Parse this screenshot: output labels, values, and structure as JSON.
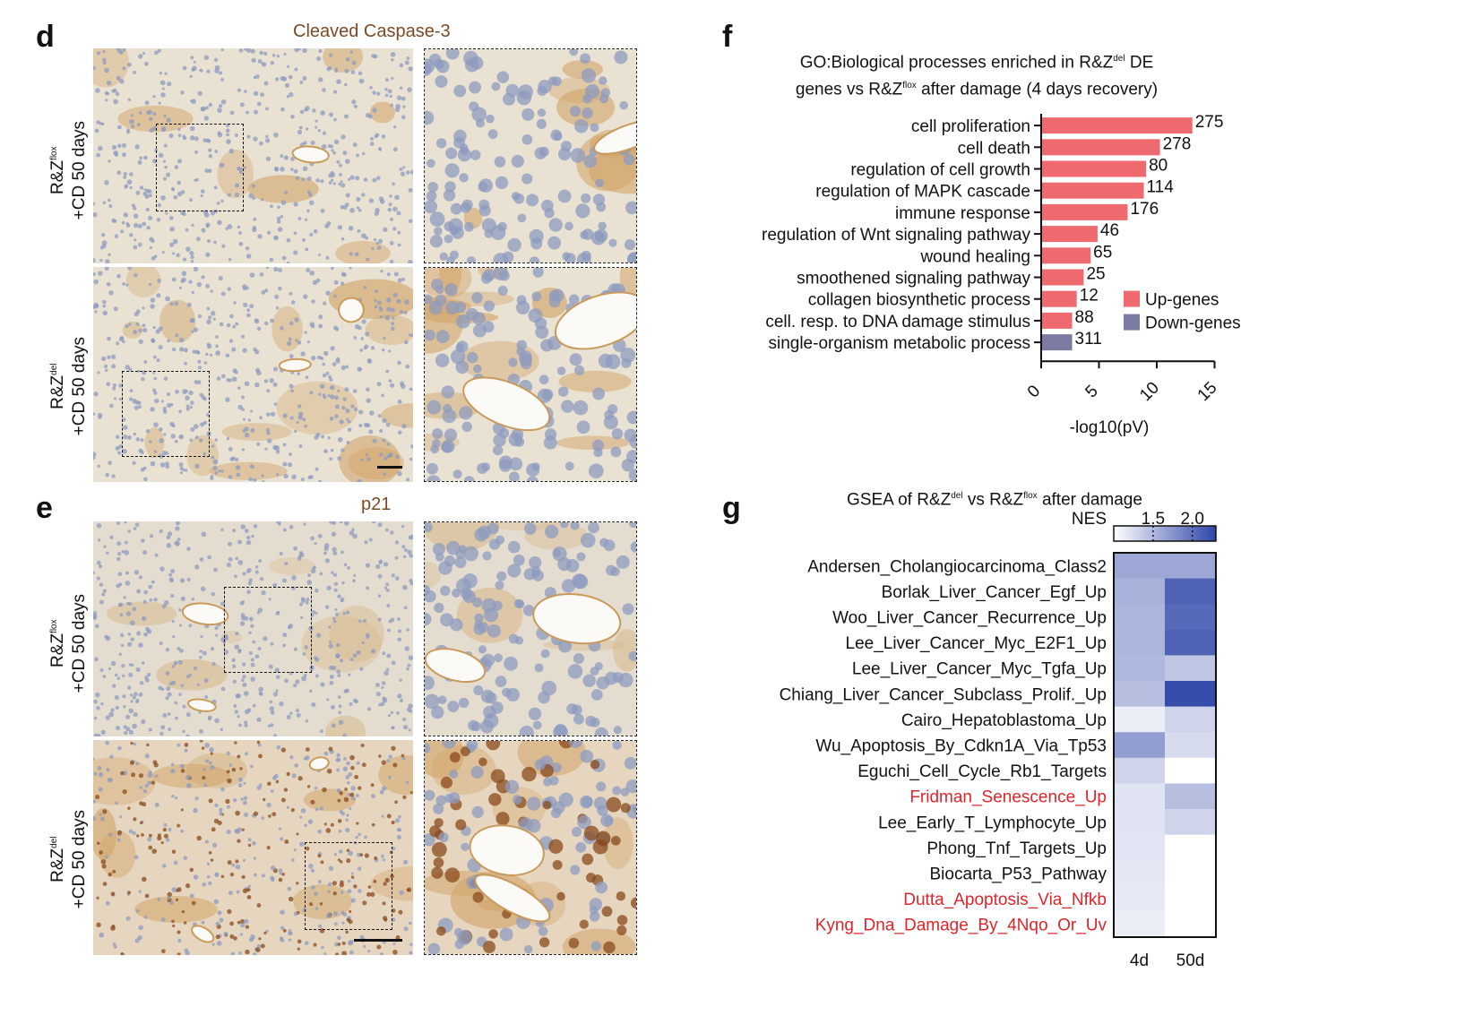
{
  "panel_d": {
    "letter": "d",
    "stain": "Cleaved Caspase-3",
    "rows": [
      {
        "genotype": "R&Z",
        "sup": "flox",
        "condition": "+CD 50 days"
      },
      {
        "genotype": "R&Z",
        "sup": "del",
        "condition": "+CD 50 days"
      }
    ]
  },
  "panel_e": {
    "letter": "e",
    "stain": "p21",
    "rows": [
      {
        "genotype": "R&Z",
        "sup": "flox",
        "condition": "+CD 50 days"
      },
      {
        "genotype": "R&Z",
        "sup": "del",
        "condition": "+CD 50 days"
      }
    ]
  },
  "panel_f": {
    "letter": "f",
    "title_line1_a": "GO:Biological processes enriched in R&Z",
    "title_line1_sup": "del",
    "title_line1_b": " DE",
    "title_line2_a": "genes vs R&Z",
    "title_line2_sup": "flox",
    "title_line2_b": " after damage (4 days recovery)"
  },
  "panel_g": {
    "letter": "g",
    "title_a": "GSEA of R&Z",
    "title_sup1": "del",
    "title_b": " vs R&Z",
    "title_sup2": "flox",
    "title_c": " after damage",
    "nes_label": "NES",
    "nes_ticks": [
      "1.5",
      "2.0"
    ],
    "columns": [
      "4d",
      "50d"
    ]
  },
  "colors": {
    "up": "#ef6a6e",
    "down": "#7b7ba3",
    "heat_low": "#ffffff",
    "heat_high": "#2f46a8",
    "red_text": "#e1242a",
    "stain_title": "#7a4a22"
  },
  "chart_data": [
    {
      "type": "bar",
      "orientation": "horizontal",
      "categories": [
        "cell proliferation",
        "cell death",
        "regulation of cell growth",
        "regulation of MAPK cascade",
        "immune response",
        "regulation of Wnt signaling pathway",
        "wound healing",
        "smoothened signaling pathway",
        "collagen biosynthetic process",
        "cell. resp. to DNA damage stimulus",
        "single-organism metabolic process"
      ],
      "values": [
        13.0,
        10.2,
        9.0,
        8.8,
        7.4,
        4.8,
        4.2,
        3.6,
        3.0,
        2.6,
        2.6
      ],
      "counts": [
        "275",
        "278",
        "80",
        "114",
        "176",
        "46",
        "65",
        "25",
        "12",
        "88",
        "311"
      ],
      "groups": [
        "up",
        "up",
        "up",
        "up",
        "up",
        "up",
        "up",
        "up",
        "up",
        "up",
        "down"
      ],
      "legend": [
        "Up-genes",
        "Down-genes"
      ],
      "legend_position": "lower-right",
      "xlabel": "-log10(pV)",
      "xticks": [
        "0",
        "5",
        "10",
        "15"
      ],
      "xlim": [
        0,
        15
      ]
    },
    {
      "type": "heatmap",
      "columns": [
        "4d",
        "50d"
      ],
      "rows": [
        {
          "name": "Andersen_Cholangiocarcinoma_Class2",
          "values": [
            1.62,
            1.62
          ],
          "highlight": false
        },
        {
          "name": "Borlak_Liver_Cancer_Egf_Up",
          "values": [
            1.55,
            2.1
          ],
          "highlight": false
        },
        {
          "name": "Woo_Liver_Cancer_Recurrence_Up",
          "values": [
            1.52,
            2.05
          ],
          "highlight": false
        },
        {
          "name": "Lee_Liver_Cancer_Myc_E2F1_Up",
          "values": [
            1.52,
            2.1
          ],
          "highlight": false
        },
        {
          "name": "Lee_Liver_Cancer_Myc_Tgfa_Up",
          "values": [
            1.5,
            1.4
          ],
          "highlight": false
        },
        {
          "name": "Chiang_Liver_Cancer_Subclass_Prolif._Up",
          "values": [
            1.45,
            2.25
          ],
          "highlight": false
        },
        {
          "name": "Cairo_Hepatoblastoma_Up",
          "values": [
            1.12,
            1.3
          ],
          "highlight": false
        },
        {
          "name": "Wu_Apoptosis_By_Cdkn1A_Via_Tp53",
          "values": [
            1.68,
            1.25
          ],
          "highlight": false
        },
        {
          "name": "Eguchi_Cell_Cycle_Rb1_Targets",
          "values": [
            1.3,
            1.0
          ],
          "highlight": false
        },
        {
          "name": "Fridman_Senescence_Up",
          "values": [
            1.2,
            1.45
          ],
          "highlight": true
        },
        {
          "name": "Lee_Early_T_Lymphocyte_Up",
          "values": [
            1.2,
            1.3
          ],
          "highlight": false
        },
        {
          "name": "Phong_Tnf_Targets_Up",
          "values": [
            1.18,
            1.0
          ],
          "highlight": false
        },
        {
          "name": "Biocarta_P53_Pathway",
          "values": [
            1.16,
            1.0
          ],
          "highlight": false
        },
        {
          "name": "Dutta_Apoptosis_Via_Nfkb",
          "values": [
            1.15,
            1.0
          ],
          "highlight": true
        },
        {
          "name": "Kyng_Dna_Damage_By_4Nqo_Or_Uv",
          "values": [
            1.12,
            1.0
          ],
          "highlight": true
        }
      ],
      "scale_label": "NES",
      "scale_ticks": [
        "1.5",
        "2.0"
      ],
      "scale_range": [
        1.0,
        2.3
      ]
    }
  ]
}
